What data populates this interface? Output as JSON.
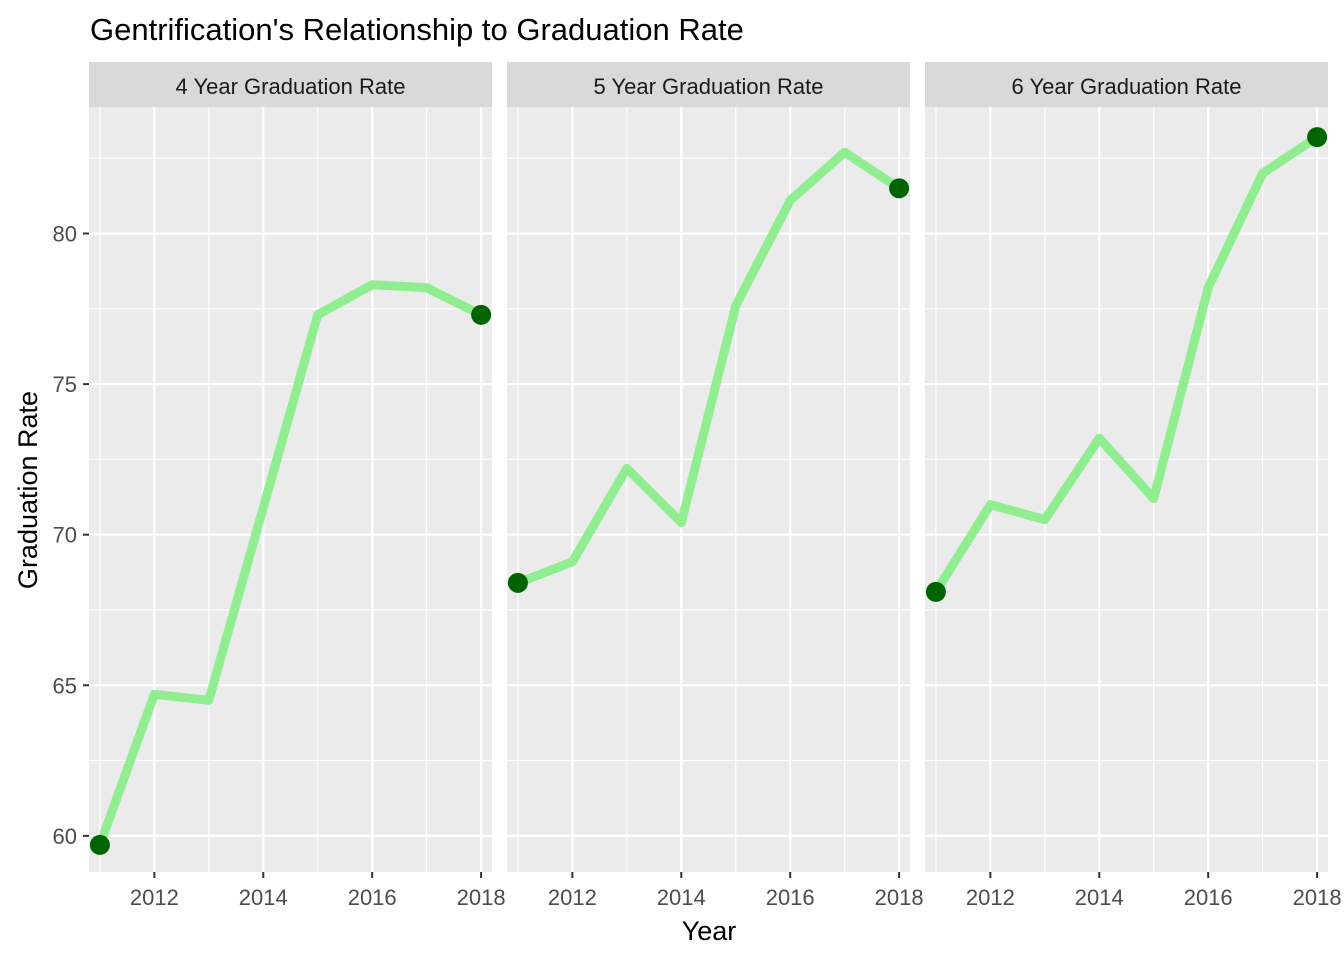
{
  "chart_data": {
    "type": "line",
    "title": "Gentrification's Relationship to Graduation Rate",
    "xlabel": "Year",
    "ylabel": "Graduation Rate",
    "x_ticks": [
      2012,
      2014,
      2016,
      2018
    ],
    "y_ticks": [
      60,
      65,
      70,
      75,
      80
    ],
    "xlim": [
      2010.8,
      2018.2
    ],
    "ylim": [
      58.8,
      84.2
    ],
    "grid": true,
    "line_color": "#90EE90",
    "endpoint_color": "#006400",
    "panel_background": "#EBEBEB",
    "strip_background": "#D9D9D9",
    "panels": [
      {
        "strip": "4 Year Graduation Rate",
        "x": [
          2011,
          2012,
          2013,
          2014,
          2015,
          2016,
          2017,
          2018
        ],
        "values": [
          59.7,
          64.7,
          64.5,
          70.9,
          77.3,
          78.3,
          78.2,
          77.3
        ]
      },
      {
        "strip": "5 Year Graduation Rate",
        "x": [
          2011,
          2012,
          2013,
          2014,
          2015,
          2016,
          2017,
          2018
        ],
        "values": [
          68.4,
          69.1,
          72.2,
          70.4,
          77.6,
          81.1,
          82.7,
          81.5
        ]
      },
      {
        "strip": "6 Year Graduation Rate",
        "x": [
          2011,
          2012,
          2013,
          2014,
          2015,
          2016,
          2017,
          2018
        ],
        "values": [
          68.1,
          71.0,
          70.5,
          73.2,
          71.2,
          78.2,
          82.0,
          83.2
        ]
      }
    ]
  }
}
